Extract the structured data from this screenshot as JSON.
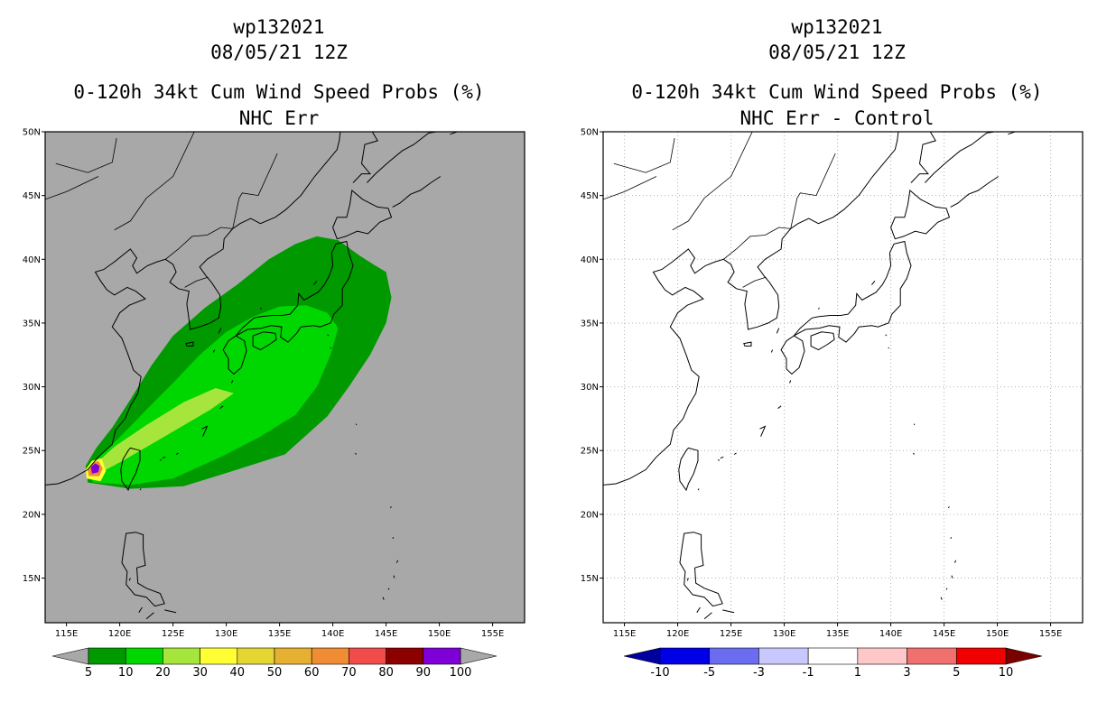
{
  "left": {
    "title_line1": "wp132021",
    "title_line2": "08/05/21 12Z",
    "title_line3": "0-120h 34kt Cum Wind Speed Probs (%)",
    "title_line4": "NHC Err",
    "lat_labels": [
      "50N",
      "45N",
      "40N",
      "35N",
      "30N",
      "25N",
      "20N",
      "15N"
    ],
    "lon_labels": [
      "115E",
      "120E",
      "125E",
      "130E",
      "135E",
      "140E",
      "145E",
      "150E",
      "155E"
    ],
    "colorbar": {
      "labels": [
        "5",
        "10",
        "20",
        "30",
        "40",
        "50",
        "60",
        "70",
        "80",
        "90",
        "100"
      ],
      "colors": [
        "#009900",
        "#00d600",
        "#a6e63c",
        "#ffff33",
        "#e6d633",
        "#e6b033",
        "#f08c33",
        "#f04c4c",
        "#8c0000",
        "#7f00d6"
      ],
      "under_color": "#a8a8a8",
      "over_color": "#a8a8a8"
    },
    "background_color": "#a8a8a8"
  },
  "right": {
    "title_line1": "wp132021",
    "title_line2": "08/05/21 12Z",
    "title_line3": "0-120h 34kt Cum Wind Speed Probs (%)",
    "title_line4": "NHC Err - Control",
    "lat_labels": [
      "50N",
      "45N",
      "40N",
      "35N",
      "30N",
      "25N",
      "20N",
      "15N"
    ],
    "lon_labels": [
      "115E",
      "120E",
      "125E",
      "130E",
      "135E",
      "140E",
      "145E",
      "150E",
      "155E"
    ],
    "colorbar": {
      "labels": [
        "-10",
        "-5",
        "-3",
        "-1",
        "1",
        "3",
        "5",
        "10"
      ],
      "colors": [
        "#0000e6",
        "#6c6cf0",
        "#c8c8ff",
        "#ffffff",
        "#ffc8c8",
        "#f07070",
        "#f00000"
      ],
      "under_color": "#0000a0",
      "over_color": "#7a0000"
    },
    "background_color": "#ffffff"
  },
  "map": {
    "lat_values": [
      50,
      45,
      40,
      35,
      30,
      25,
      20,
      15
    ],
    "lon_values": [
      115,
      120,
      125,
      130,
      135,
      140,
      145,
      150,
      155
    ],
    "lon_range": [
      113,
      158
    ],
    "lat_range": [
      11.5,
      50
    ]
  },
  "swath_levels": [
    {
      "threshold": "5",
      "color": "#009900"
    },
    {
      "threshold": "10",
      "color": "#00d600"
    },
    {
      "threshold": "20",
      "color": "#a6e63c"
    },
    {
      "threshold": "30",
      "color": "#ffff33"
    },
    {
      "threshold": "60",
      "color": "#f08c33"
    },
    {
      "threshold": "90",
      "color": "#7f00d6"
    }
  ]
}
